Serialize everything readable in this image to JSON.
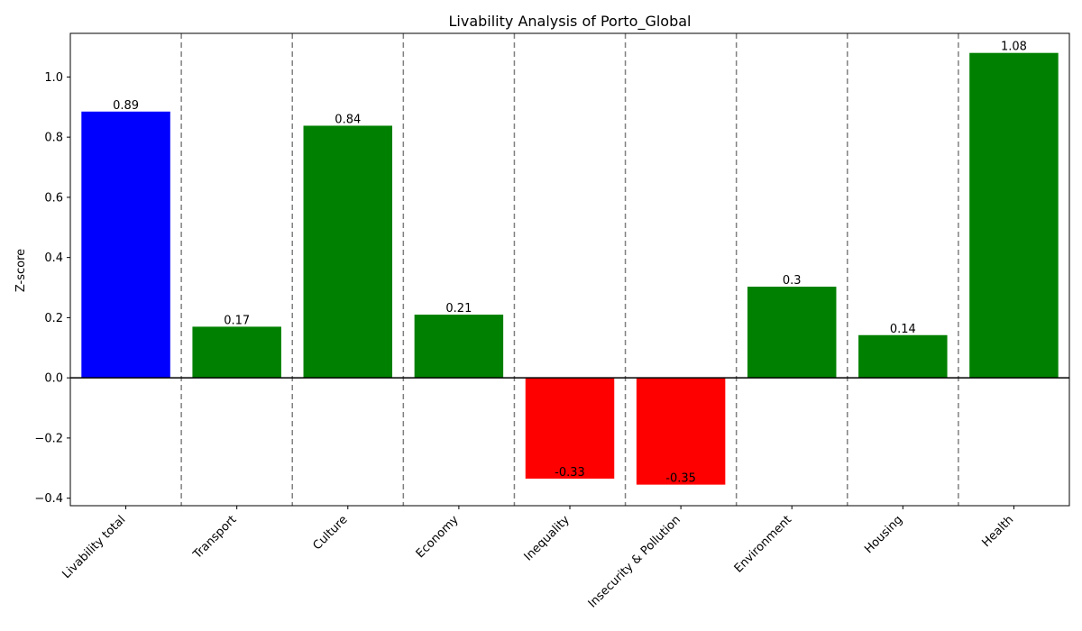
{
  "chart_data": {
    "type": "bar",
    "title": "Livability Analysis of Porto_Global",
    "xlabel": "",
    "ylabel": "Z-score",
    "ylim": [
      -0.425,
      1.145
    ],
    "yticks": [
      -0.4,
      -0.2,
      0.0,
      0.2,
      0.4,
      0.6,
      0.8,
      1.0
    ],
    "ytick_labels": [
      "−0.4",
      "−0.2",
      "0.0",
      "0.2",
      "0.4",
      "0.6",
      "0.8",
      "1.0"
    ],
    "categories": [
      "Livability total",
      "Transport",
      "Culture",
      "Economy",
      "Inequality",
      "Insecurity & Pollution",
      "Environment",
      "Housing",
      "Health"
    ],
    "values": [
      0.885,
      0.17,
      0.838,
      0.21,
      -0.335,
      -0.355,
      0.303,
      0.142,
      1.08
    ],
    "data_labels": [
      "0.89",
      "0.17",
      "0.84",
      "0.21",
      "-0.33",
      "-0.35",
      "0.3",
      "0.14",
      "1.08"
    ],
    "colors": [
      "#0000ff",
      "#008000",
      "#008000",
      "#008000",
      "#ff0000",
      "#ff0000",
      "#008000",
      "#008000",
      "#008000"
    ],
    "grid": false,
    "separators": "dashed vertical lines between categories",
    "zero_line": true
  }
}
